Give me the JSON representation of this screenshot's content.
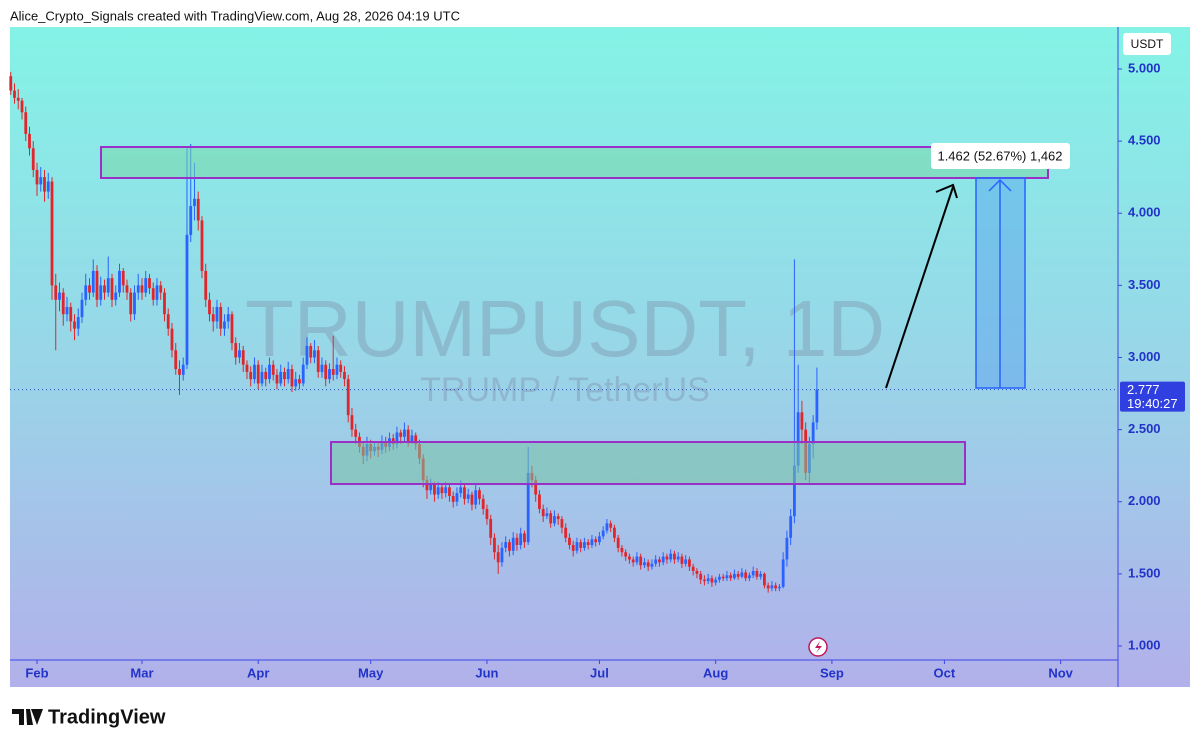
{
  "header": "Alice_Crypto_Signals created with TradingView.com, Aug 28, 2026 04:19 UTC",
  "brand": "TradingView",
  "chart_data": {
    "type": "candlestick",
    "title": "TRUMPUSDT, 1D",
    "subtitle": "TRUMP / TetherUS",
    "currency": "USDT",
    "last_price": 2.777,
    "countdown": "19:40:27",
    "measure_label": "1.462 (52.67%) 1,462",
    "up_color": "#2962ff",
    "down_color": "#e0262b",
    "ylim": [
      0.903,
      5.291
    ],
    "yticks": [
      {
        "value": 1,
        "label": "1.000"
      },
      {
        "value": 1.5,
        "label": "1.500"
      },
      {
        "value": 2,
        "label": "2.000"
      },
      {
        "value": 2.5,
        "label": "2.500"
      },
      {
        "value": 3,
        "label": "3.000"
      },
      {
        "value": 3.5,
        "label": "3.500"
      },
      {
        "value": 4,
        "label": "4.000"
      },
      {
        "value": 4.5,
        "label": "4.500"
      },
      {
        "value": 5,
        "label": "5.000"
      }
    ],
    "xlim": [
      23.8,
      319.3
    ],
    "xticks": [
      {
        "value": 31,
        "label": "Feb"
      },
      {
        "value": 59,
        "label": "Mar"
      },
      {
        "value": 90,
        "label": "Apr"
      },
      {
        "value": 120,
        "label": "May"
      },
      {
        "value": 151,
        "label": "Jun"
      },
      {
        "value": 181,
        "label": "Jul"
      },
      {
        "value": 212,
        "label": "Aug"
      },
      {
        "value": 243,
        "label": "Sep"
      },
      {
        "value": 273,
        "label": "Oct"
      },
      {
        "value": 304,
        "label": "Nov"
      }
    ],
    "candles": [
      [
        24,
        4.95,
        4.98,
        4.82,
        4.85
      ],
      [
        25,
        4.85,
        4.9,
        4.76,
        4.8
      ],
      [
        26,
        4.8,
        4.86,
        4.72,
        4.78
      ],
      [
        27,
        4.78,
        4.8,
        4.65,
        4.7
      ],
      [
        28,
        4.7,
        4.74,
        4.5,
        4.55
      ],
      [
        29,
        4.55,
        4.6,
        4.4,
        4.45
      ],
      [
        30,
        4.45,
        4.5,
        4.25,
        4.3
      ],
      [
        31,
        4.3,
        4.35,
        4.12,
        4.2
      ],
      [
        32,
        4.2,
        4.32,
        4.15,
        4.25
      ],
      [
        33,
        4.25,
        4.3,
        4.08,
        4.15
      ],
      [
        34,
        4.15,
        4.28,
        4.1,
        4.22
      ],
      [
        35,
        4.22,
        4.25,
        3.4,
        3.5
      ],
      [
        36,
        3.5,
        3.58,
        3.05,
        3.4
      ],
      [
        37,
        3.4,
        3.52,
        3.32,
        3.45
      ],
      [
        38,
        3.45,
        3.48,
        3.22,
        3.3
      ],
      [
        39,
        3.3,
        3.42,
        3.25,
        3.35
      ],
      [
        40,
        3.35,
        3.38,
        3.18,
        3.25
      ],
      [
        41,
        3.25,
        3.3,
        3.12,
        3.2
      ],
      [
        42,
        3.2,
        3.34,
        3.15,
        3.28
      ],
      [
        43,
        3.28,
        3.45,
        3.24,
        3.4
      ],
      [
        44,
        3.4,
        3.58,
        3.36,
        3.5
      ],
      [
        45,
        3.5,
        3.55,
        3.4,
        3.45
      ],
      [
        46,
        3.45,
        3.68,
        3.42,
        3.6
      ],
      [
        47,
        3.6,
        3.64,
        3.35,
        3.4
      ],
      [
        48,
        3.4,
        3.56,
        3.36,
        3.5
      ],
      [
        49,
        3.5,
        3.54,
        3.4,
        3.45
      ],
      [
        50,
        3.45,
        3.7,
        3.42,
        3.55
      ],
      [
        51,
        3.55,
        3.58,
        3.35,
        3.4
      ],
      [
        52,
        3.4,
        3.5,
        3.36,
        3.45
      ],
      [
        53,
        3.45,
        3.65,
        3.42,
        3.6
      ],
      [
        54,
        3.6,
        3.62,
        3.45,
        3.5
      ],
      [
        55,
        3.5,
        3.54,
        3.4,
        3.45
      ],
      [
        56,
        3.45,
        3.48,
        3.25,
        3.3
      ],
      [
        57,
        3.3,
        3.5,
        3.26,
        3.45
      ],
      [
        58,
        3.45,
        3.58,
        3.4,
        3.5
      ],
      [
        59,
        3.5,
        3.55,
        3.4,
        3.45
      ],
      [
        60,
        3.45,
        3.6,
        3.42,
        3.55
      ],
      [
        61,
        3.55,
        3.58,
        3.44,
        3.48
      ],
      [
        62,
        3.48,
        3.52,
        3.36,
        3.4
      ],
      [
        63,
        3.4,
        3.55,
        3.36,
        3.5
      ],
      [
        64,
        3.5,
        3.53,
        3.4,
        3.45
      ],
      [
        65,
        3.45,
        3.48,
        3.25,
        3.3
      ],
      [
        66,
        3.3,
        3.34,
        3.15,
        3.2
      ],
      [
        67,
        3.2,
        3.24,
        3.0,
        3.05
      ],
      [
        68,
        3.05,
        3.1,
        2.88,
        2.92
      ],
      [
        69,
        2.92,
        2.98,
        2.74,
        2.88
      ],
      [
        70,
        2.88,
        3.0,
        2.84,
        2.95
      ],
      [
        71,
        2.95,
        4.45,
        2.92,
        3.85
      ],
      [
        72,
        3.85,
        4.48,
        3.8,
        4.05
      ],
      [
        73,
        4.05,
        4.35,
        3.95,
        4.1
      ],
      [
        74,
        4.1,
        4.15,
        3.88,
        3.95
      ],
      [
        75,
        3.95,
        3.98,
        3.55,
        3.6
      ],
      [
        76,
        3.6,
        3.65,
        3.35,
        3.4
      ],
      [
        77,
        3.4,
        3.45,
        3.25,
        3.3
      ],
      [
        78,
        3.3,
        3.35,
        3.18,
        3.25
      ],
      [
        79,
        3.25,
        3.4,
        3.2,
        3.35
      ],
      [
        80,
        3.35,
        3.38,
        3.15,
        3.2
      ],
      [
        81,
        3.2,
        3.3,
        3.15,
        3.25
      ],
      [
        82,
        3.25,
        3.35,
        3.2,
        3.3
      ],
      [
        83,
        3.3,
        3.32,
        3.05,
        3.1
      ],
      [
        84,
        3.1,
        3.14,
        2.95,
        3.0
      ],
      [
        85,
        3.0,
        3.1,
        2.96,
        3.05
      ],
      [
        86,
        3.05,
        3.08,
        2.9,
        2.95
      ],
      [
        87,
        2.95,
        2.98,
        2.85,
        2.9
      ],
      [
        88,
        2.9,
        2.94,
        2.8,
        2.85
      ],
      [
        89,
        2.85,
        3.0,
        2.82,
        2.95
      ],
      [
        90,
        2.95,
        2.98,
        2.78,
        2.82
      ],
      [
        91,
        2.82,
        2.95,
        2.8,
        2.9
      ],
      [
        92,
        2.9,
        2.93,
        2.8,
        2.85
      ],
      [
        93,
        2.85,
        3.0,
        2.82,
        2.95
      ],
      [
        94,
        2.95,
        2.98,
        2.84,
        2.88
      ],
      [
        95,
        2.88,
        2.92,
        2.78,
        2.82
      ],
      [
        96,
        2.82,
        2.95,
        2.8,
        2.9
      ],
      [
        97,
        2.9,
        2.93,
        2.8,
        2.85
      ],
      [
        98,
        2.85,
        2.97,
        2.82,
        2.92
      ],
      [
        99,
        2.92,
        2.95,
        2.76,
        2.8
      ],
      [
        100,
        2.8,
        2.9,
        2.77,
        2.85
      ],
      [
        101,
        2.85,
        2.88,
        2.78,
        2.82
      ],
      [
        102,
        2.82,
        3.0,
        2.8,
        2.95
      ],
      [
        103,
        2.95,
        3.14,
        2.92,
        3.08
      ],
      [
        104,
        3.08,
        3.1,
        2.96,
        3.0
      ],
      [
        105,
        3.0,
        3.12,
        2.96,
        3.05
      ],
      [
        106,
        3.05,
        3.08,
        2.86,
        2.9
      ],
      [
        107,
        2.9,
        3.0,
        2.86,
        2.95
      ],
      [
        108,
        2.95,
        2.98,
        2.8,
        2.85
      ],
      [
        109,
        2.85,
        2.96,
        2.82,
        2.92
      ],
      [
        110,
        2.92,
        3.15,
        2.84,
        2.88
      ],
      [
        111,
        2.88,
        3.0,
        2.85,
        2.95
      ],
      [
        112,
        2.95,
        2.98,
        2.86,
        2.9
      ],
      [
        113,
        2.9,
        2.94,
        2.8,
        2.85
      ],
      [
        114,
        2.85,
        2.88,
        2.55,
        2.6
      ],
      [
        115,
        2.6,
        2.65,
        2.45,
        2.5
      ],
      [
        116,
        2.5,
        2.54,
        2.4,
        2.45
      ],
      [
        117,
        2.45,
        2.48,
        2.34,
        2.38
      ],
      [
        118,
        2.38,
        2.42,
        2.26,
        2.32
      ],
      [
        119,
        2.32,
        2.45,
        2.28,
        2.4
      ],
      [
        120,
        2.4,
        2.43,
        2.3,
        2.35
      ],
      [
        121,
        2.35,
        2.42,
        2.32,
        2.38
      ],
      [
        122,
        2.38,
        2.41,
        2.31,
        2.36
      ],
      [
        123,
        2.36,
        2.46,
        2.33,
        2.42
      ],
      [
        124,
        2.42,
        2.45,
        2.34,
        2.38
      ],
      [
        125,
        2.38,
        2.48,
        2.35,
        2.44
      ],
      [
        126,
        2.44,
        2.47,
        2.36,
        2.4
      ],
      [
        127,
        2.4,
        2.52,
        2.37,
        2.48
      ],
      [
        128,
        2.48,
        2.5,
        2.4,
        2.45
      ],
      [
        129,
        2.45,
        2.55,
        2.42,
        2.5
      ],
      [
        130,
        2.5,
        2.53,
        2.38,
        2.42
      ],
      [
        131,
        2.42,
        2.5,
        2.4,
        2.46
      ],
      [
        132,
        2.46,
        2.48,
        2.36,
        2.4
      ],
      [
        133,
        2.4,
        2.43,
        2.26,
        2.3
      ],
      [
        134,
        2.3,
        2.33,
        2.1,
        2.15
      ],
      [
        135,
        2.15,
        2.18,
        2.02,
        2.08
      ],
      [
        136,
        2.08,
        2.16,
        2.05,
        2.12
      ],
      [
        137,
        2.12,
        2.14,
        2.0,
        2.05
      ],
      [
        138,
        2.05,
        2.14,
        2.02,
        2.1
      ],
      [
        139,
        2.1,
        2.13,
        2.02,
        2.06
      ],
      [
        140,
        2.06,
        2.14,
        2.03,
        2.1
      ],
      [
        141,
        2.1,
        2.12,
        2.0,
        2.04
      ],
      [
        142,
        2.04,
        2.07,
        1.96,
        2.0
      ],
      [
        143,
        2.0,
        2.1,
        1.97,
        2.06
      ],
      [
        144,
        2.06,
        2.15,
        2.03,
        2.1
      ],
      [
        145,
        2.1,
        2.12,
        1.98,
        2.02
      ],
      [
        146,
        2.02,
        2.09,
        1.99,
        2.05
      ],
      [
        147,
        2.05,
        2.07,
        1.94,
        1.98
      ],
      [
        148,
        1.98,
        2.12,
        1.95,
        2.08
      ],
      [
        149,
        2.08,
        2.1,
        1.98,
        2.02
      ],
      [
        150,
        2.02,
        2.05,
        1.91,
        1.95
      ],
      [
        151,
        1.95,
        1.98,
        1.84,
        1.88
      ],
      [
        152,
        1.88,
        1.91,
        1.7,
        1.75
      ],
      [
        153,
        1.75,
        1.78,
        1.6,
        1.65
      ],
      [
        154,
        1.65,
        1.7,
        1.5,
        1.58
      ],
      [
        155,
        1.58,
        1.72,
        1.55,
        1.68
      ],
      [
        156,
        1.68,
        1.76,
        1.65,
        1.72
      ],
      [
        157,
        1.72,
        1.74,
        1.62,
        1.66
      ],
      [
        158,
        1.66,
        1.79,
        1.63,
        1.75
      ],
      [
        159,
        1.75,
        1.78,
        1.66,
        1.7
      ],
      [
        160,
        1.7,
        1.82,
        1.67,
        1.78
      ],
      [
        161,
        1.78,
        1.8,
        1.68,
        1.72
      ],
      [
        162,
        1.72,
        2.38,
        1.7,
        2.2
      ],
      [
        163,
        2.2,
        2.25,
        2.1,
        2.15
      ],
      [
        164,
        2.15,
        2.18,
        2.0,
        2.05
      ],
      [
        165,
        2.05,
        2.08,
        1.92,
        1.95
      ],
      [
        166,
        1.95,
        1.98,
        1.86,
        1.9
      ],
      [
        167,
        1.9,
        1.96,
        1.88,
        1.92
      ],
      [
        168,
        1.92,
        1.94,
        1.82,
        1.85
      ],
      [
        169,
        1.85,
        1.94,
        1.83,
        1.9
      ],
      [
        170,
        1.9,
        1.92,
        1.84,
        1.88
      ],
      [
        171,
        1.88,
        1.9,
        1.78,
        1.82
      ],
      [
        172,
        1.82,
        1.85,
        1.72,
        1.75
      ],
      [
        173,
        1.75,
        1.78,
        1.67,
        1.7
      ],
      [
        174,
        1.7,
        1.73,
        1.62,
        1.66
      ],
      [
        175,
        1.66,
        1.75,
        1.64,
        1.72
      ],
      [
        176,
        1.72,
        1.74,
        1.65,
        1.68
      ],
      [
        177,
        1.68,
        1.75,
        1.66,
        1.72
      ],
      [
        178,
        1.72,
        1.74,
        1.67,
        1.7
      ],
      [
        179,
        1.7,
        1.77,
        1.68,
        1.74
      ],
      [
        180,
        1.74,
        1.76,
        1.69,
        1.72
      ],
      [
        181,
        1.72,
        1.79,
        1.7,
        1.76
      ],
      [
        182,
        1.76,
        1.83,
        1.74,
        1.8
      ],
      [
        183,
        1.8,
        1.88,
        1.78,
        1.85
      ],
      [
        184,
        1.85,
        1.87,
        1.79,
        1.82
      ],
      [
        185,
        1.82,
        1.84,
        1.72,
        1.75
      ],
      [
        186,
        1.75,
        1.77,
        1.65,
        1.68
      ],
      [
        187,
        1.68,
        1.7,
        1.62,
        1.65
      ],
      [
        188,
        1.65,
        1.67,
        1.59,
        1.62
      ],
      [
        189,
        1.62,
        1.64,
        1.57,
        1.6
      ],
      [
        190,
        1.6,
        1.62,
        1.55,
        1.58
      ],
      [
        191,
        1.58,
        1.65,
        1.56,
        1.62
      ],
      [
        192,
        1.62,
        1.64,
        1.53,
        1.56
      ],
      [
        193,
        1.56,
        1.61,
        1.54,
        1.58
      ],
      [
        194,
        1.58,
        1.6,
        1.52,
        1.55
      ],
      [
        195,
        1.55,
        1.6,
        1.53,
        1.57
      ],
      [
        196,
        1.57,
        1.63,
        1.55,
        1.6
      ],
      [
        197,
        1.6,
        1.62,
        1.55,
        1.58
      ],
      [
        198,
        1.58,
        1.65,
        1.56,
        1.62
      ],
      [
        199,
        1.62,
        1.64,
        1.57,
        1.6
      ],
      [
        200,
        1.6,
        1.67,
        1.58,
        1.64
      ],
      [
        201,
        1.64,
        1.66,
        1.57,
        1.6
      ],
      [
        202,
        1.6,
        1.65,
        1.58,
        1.62
      ],
      [
        203,
        1.62,
        1.64,
        1.54,
        1.57
      ],
      [
        204,
        1.57,
        1.63,
        1.55,
        1.6
      ],
      [
        205,
        1.6,
        1.62,
        1.52,
        1.55
      ],
      [
        206,
        1.55,
        1.57,
        1.49,
        1.52
      ],
      [
        207,
        1.52,
        1.54,
        1.47,
        1.5
      ],
      [
        208,
        1.5,
        1.52,
        1.43,
        1.46
      ],
      [
        209,
        1.46,
        1.49,
        1.42,
        1.45
      ],
      [
        210,
        1.45,
        1.5,
        1.43,
        1.47
      ],
      [
        211,
        1.47,
        1.49,
        1.41,
        1.44
      ],
      [
        212,
        1.44,
        1.48,
        1.42,
        1.46
      ],
      [
        213,
        1.46,
        1.5,
        1.44,
        1.48
      ],
      [
        214,
        1.48,
        1.5,
        1.45,
        1.47
      ],
      [
        215,
        1.47,
        1.52,
        1.45,
        1.49
      ],
      [
        216,
        1.49,
        1.51,
        1.45,
        1.47
      ],
      [
        217,
        1.47,
        1.53,
        1.46,
        1.5
      ],
      [
        218,
        1.5,
        1.52,
        1.46,
        1.48
      ],
      [
        219,
        1.48,
        1.54,
        1.47,
        1.51
      ],
      [
        220,
        1.51,
        1.53,
        1.45,
        1.47
      ],
      [
        221,
        1.47,
        1.51,
        1.45,
        1.49
      ],
      [
        222,
        1.49,
        1.55,
        1.47,
        1.52
      ],
      [
        223,
        1.52,
        1.54,
        1.46,
        1.48
      ],
      [
        224,
        1.48,
        1.52,
        1.46,
        1.5
      ],
      [
        225,
        1.5,
        1.51,
        1.4,
        1.42
      ],
      [
        226,
        1.42,
        1.44,
        1.37,
        1.4
      ],
      [
        227,
        1.4,
        1.45,
        1.38,
        1.42
      ],
      [
        228,
        1.42,
        1.44,
        1.38,
        1.4
      ],
      [
        229,
        1.4,
        1.43,
        1.38,
        1.41
      ],
      [
        230,
        1.41,
        1.65,
        1.4,
        1.6
      ],
      [
        231,
        1.6,
        1.8,
        1.55,
        1.75
      ],
      [
        232,
        1.75,
        1.95,
        1.7,
        1.9
      ],
      [
        233,
        1.9,
        3.68,
        1.85,
        2.25
      ],
      [
        234,
        2.25,
        2.95,
        2.2,
        2.62
      ],
      [
        235,
        2.62,
        2.7,
        2.4,
        2.5
      ],
      [
        236,
        2.5,
        2.55,
        2.15,
        2.2
      ],
      [
        237,
        2.2,
        2.45,
        2.12,
        2.4
      ],
      [
        238,
        2.4,
        2.6,
        2.3,
        2.55
      ],
      [
        239,
        2.55,
        2.93,
        2.5,
        2.777
      ]
    ]
  }
}
